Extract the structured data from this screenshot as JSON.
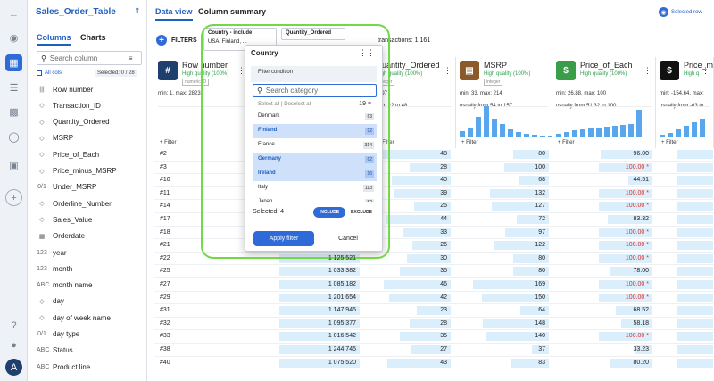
{
  "sidebar": {
    "title": "Sales_Order_Table",
    "tabs": [
      "Columns",
      "Charts"
    ],
    "search_placeholder": "Search column",
    "all_cols_label": "All cols",
    "selected_label": "Selected: 0 / 28",
    "columns": [
      {
        "icon": "|||",
        "name": "Row number"
      },
      {
        "icon": "◇",
        "name": "Transaction_ID"
      },
      {
        "icon": "◇",
        "name": "Quantity_Ordered"
      },
      {
        "icon": "◇",
        "name": "MSRP"
      },
      {
        "icon": "◇",
        "name": "Price_of_Each"
      },
      {
        "icon": "◇",
        "name": "Price_minus_MSRP"
      },
      {
        "icon": "0/1",
        "name": "Under_MSRP"
      },
      {
        "icon": "◇",
        "name": "Orderline_Number"
      },
      {
        "icon": "◇",
        "name": "Sales_Value"
      },
      {
        "icon": "▦",
        "name": "Orderdate"
      },
      {
        "icon": "123",
        "name": "year"
      },
      {
        "icon": "123",
        "name": "month"
      },
      {
        "icon": "ABC",
        "name": "month name"
      },
      {
        "icon": "◇",
        "name": "day"
      },
      {
        "icon": "◇",
        "name": "day of week name"
      },
      {
        "icon": "0/1",
        "name": "day type"
      },
      {
        "icon": "ABC",
        "name": "Status"
      },
      {
        "icon": "ABC",
        "name": "Product line"
      }
    ]
  },
  "main": {
    "tabs": [
      "Data view",
      "Column summary"
    ],
    "selected_row_label": "Selected row",
    "filters_label": "FILTERS",
    "chips": [
      {
        "label": "Country - include",
        "value": "USA, Finland, ..."
      },
      {
        "label": "Quantity_Ordered",
        "value": ""
      }
    ],
    "transactions_label": "transactions: 1,161"
  },
  "columns": [
    {
      "name": "Row number",
      "quality": "High quality (100%)",
      "type": "numeric ID",
      "minmax": "min: 1, max: 2823"
    },
    {
      "name": "Quantity_Ordered",
      "quality": "High quality (100%)",
      "type": "integer",
      "minmax": "x: 97",
      "usually": "from 22 to 48"
    },
    {
      "name": "MSRP",
      "quality": "High quality (100%)",
      "type": "integer",
      "minmax": "min: 33, max: 214",
      "usually": "usually from 54 to 157"
    },
    {
      "name": "Price_of_Each",
      "quality": "High quality (100%)",
      "type": "",
      "minmax": "min: 26.88, max: 100",
      "usually": "usually from 51.32 to 100"
    },
    {
      "name": "Price_m",
      "quality": "High q",
      "type": "",
      "minmax": "min: -154.64, max:",
      "usually": "usually from -63 to"
    }
  ],
  "filter_label": "+ Filter",
  "rows": [
    {
      "id": "#2",
      "c1": "",
      "q": "48",
      "msrp": "80",
      "price": "96.00",
      "red": false
    },
    {
      "id": "#3",
      "c1": "",
      "q": "28",
      "msrp": "100",
      "price": "100.00 *",
      "red": true
    },
    {
      "id": "#10",
      "c1": "",
      "q": "40",
      "msrp": "68",
      "price": "44.51",
      "red": false
    },
    {
      "id": "#11",
      "c1": "",
      "q": "39",
      "msrp": "132",
      "price": "100.00 *",
      "red": true
    },
    {
      "id": "#14",
      "c1": "",
      "q": "25",
      "msrp": "127",
      "price": "100.00 *",
      "red": true
    },
    {
      "id": "#17",
      "c1": "",
      "q": "44",
      "msrp": "72",
      "price": "83.32",
      "red": false
    },
    {
      "id": "#18",
      "c1": "",
      "q": "33",
      "msrp": "97",
      "price": "100.00 *",
      "red": true
    },
    {
      "id": "#21",
      "c1": "",
      "q": "26",
      "msrp": "122",
      "price": "100.00 *",
      "red": true
    },
    {
      "id": "#22",
      "c1": "1 125 521",
      "q": "30",
      "msrp": "80",
      "price": "100.00 *",
      "red": true
    },
    {
      "id": "#25",
      "c1": "1 033 382",
      "q": "35",
      "msrp": "80",
      "price": "78.00",
      "red": false
    },
    {
      "id": "#27",
      "c1": "1 085 182",
      "q": "46",
      "msrp": "169",
      "price": "100.00 *",
      "red": true
    },
    {
      "id": "#29",
      "c1": "1 201 654",
      "q": "42",
      "msrp": "150",
      "price": "100.00 *",
      "red": true
    },
    {
      "id": "#31",
      "c1": "1 147 945",
      "q": "23",
      "msrp": "64",
      "price": "68.52",
      "red": false
    },
    {
      "id": "#32",
      "c1": "1 095 377",
      "q": "28",
      "msrp": "148",
      "price": "58.18",
      "red": false
    },
    {
      "id": "#33",
      "c1": "1 016 542",
      "q": "35",
      "msrp": "140",
      "price": "100.00 *",
      "red": true
    },
    {
      "id": "#38",
      "c1": "1 244 745",
      "q": "27",
      "msrp": "37",
      "price": "33.23",
      "red": false
    },
    {
      "id": "#40",
      "c1": "1 075 520",
      "q": "43",
      "msrp": "83",
      "price": "80.20",
      "red": false
    }
  ],
  "popup": {
    "title": "Country",
    "condition_label": "Filter condition",
    "search_placeholder": "Search category",
    "select_all": "Select all",
    "deselect_all": "Deselect all",
    "count": "19",
    "items": [
      {
        "name": "Denmark",
        "count": "63",
        "on": false
      },
      {
        "name": "Finland",
        "count": "92",
        "on": true
      },
      {
        "name": "France",
        "count": "314",
        "on": false
      },
      {
        "name": "Germany",
        "count": "62",
        "on": true
      },
      {
        "name": "Ireland",
        "count": "16",
        "on": true
      },
      {
        "name": "Italy",
        "count": "113",
        "on": false
      },
      {
        "name": "Japan",
        "count": "52",
        "on": false
      }
    ],
    "selected_count": "Selected: 4",
    "include_label": "INCLUDE",
    "exclude_label": "EXCLUDE",
    "apply_label": "Apply filter",
    "cancel_label": "Cancel"
  },
  "colors": {
    "accent": "#2f6bd8",
    "highlight": "#73d847",
    "warn": "#d9302c"
  },
  "icons": [
    "back-arrow-icon",
    "eye-icon",
    "table-icon",
    "flow-icon",
    "chart-icon",
    "network-icon",
    "dashboard-icon",
    "plus-icon",
    "help-icon",
    "user-icon",
    "logo-icon",
    "search-icon",
    "filter-icon",
    "kebab-menu-icon"
  ]
}
